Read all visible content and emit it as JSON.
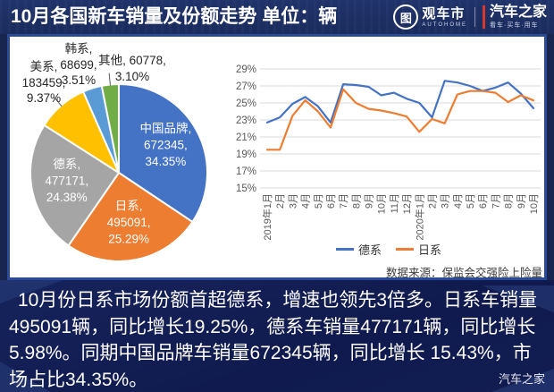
{
  "header": {
    "title": "10月各国新车销量及份额走势 单位：辆",
    "logo_left": {
      "icon_text": "图",
      "name": "观车市",
      "sub": "AUTOHOME"
    },
    "logo_right": {
      "name": "汽车之家",
      "sub": "看车·买车·用车"
    }
  },
  "chart_data": [
    {
      "type": "pie",
      "title": "10月各国新车销量及份额",
      "unit": "辆",
      "slices": [
        {
          "name": "中国品牌",
          "value": 672345,
          "pct": 34.35,
          "color": "#4472C4",
          "label": "中国品牌, 672345, 34.35%",
          "label_lines": [
            "中国品牌,",
            "672345,",
            "34.35%"
          ],
          "label_pos": "inside"
        },
        {
          "name": "日系",
          "value": 495091,
          "pct": 25.29,
          "color": "#ED7D31",
          "label": "日系, 495091, 25.29%",
          "label_lines": [
            "日系,",
            "495091,",
            "25.29%"
          ],
          "label_pos": "inside"
        },
        {
          "name": "德系",
          "value": 477171,
          "pct": 24.38,
          "color": "#A5A5A5",
          "label": "德系, 477171, 24.38%",
          "label_lines": [
            "德系,",
            "477171,",
            "24.38%"
          ],
          "label_pos": "inside"
        },
        {
          "name": "美系",
          "value": 183459,
          "pct": 9.37,
          "color": "#FFC000",
          "label": "美系, 183459, 9.37%",
          "label_lines": [
            "美系,",
            "183459,",
            "9.37%"
          ],
          "label_pos": "outside",
          "leader": true
        },
        {
          "name": "韩系",
          "value": 68699,
          "pct": 3.51,
          "color": "#5B9BD5",
          "label": "韩系, 68699, 3.51%",
          "label_lines": [
            "韩系,",
            "68699,",
            "3.51%"
          ],
          "label_pos": "outside",
          "leader": false
        },
        {
          "name": "其他",
          "value": 60778,
          "pct": 3.1,
          "color": "#70AD47",
          "label": "其他, 60778, 3.10%",
          "label_lines": [
            "其他, 60778,",
            "3.10%"
          ],
          "label_pos": "outside",
          "leader": true
        }
      ]
    },
    {
      "type": "line",
      "categories": [
        "2019年1月",
        "2月",
        "3月",
        "4月",
        "5月",
        "6月",
        "7月",
        "8月",
        "9月",
        "10月",
        "11月",
        "12月",
        "2020年1月",
        "2月",
        "3月",
        "4月",
        "5月",
        "6月",
        "7月",
        "8月",
        "9月",
        "10月"
      ],
      "series": [
        {
          "name": "德系",
          "color": "#4472C4",
          "values": [
            22.7,
            23.3,
            24.9,
            25.7,
            24.6,
            22.7,
            27.2,
            27.1,
            26.9,
            25.9,
            26.2,
            25.5,
            25.0,
            23.3,
            27.6,
            27.4,
            27.0,
            26.4,
            26.8,
            27.4,
            26.1,
            24.38
          ]
        },
        {
          "name": "日系",
          "color": "#ED7D31",
          "values": [
            19.5,
            19.5,
            23.5,
            25.3,
            24.0,
            22.1,
            26.6,
            25.0,
            24.3,
            24.1,
            23.8,
            23.4,
            21.6,
            23.1,
            22.6,
            26.0,
            26.4,
            26.4,
            26.2,
            25.1,
            25.9,
            25.29
          ]
        }
      ],
      "ylim": [
        15,
        29
      ],
      "ytick_step": 2,
      "ytick_suffix": "%",
      "grid": true,
      "legend_position": "bottom",
      "source": "数据来源：保监会交强险上险量"
    }
  ],
  "footer": {
    "summary": "10月份日系市场份额首超德系，增速也领先3倍多。日系车销量495091辆，同比增长19.25%，德系车销量477171辆，同比增长5.98%。同期中国品牌车销量672345辆，同比增长 15.43%，市场占比34.35%。",
    "watermark": "汽车之家"
  }
}
